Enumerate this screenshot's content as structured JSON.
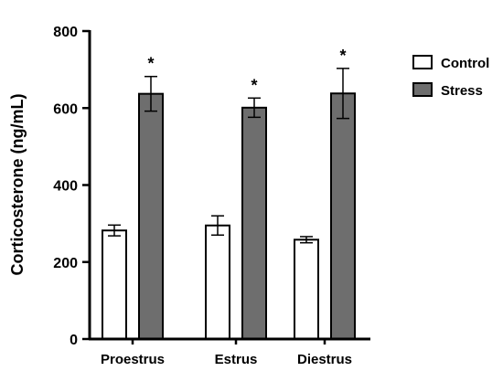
{
  "chart_data": {
    "type": "bar",
    "title": "",
    "xlabel": "",
    "ylabel": "Corticosterone (ng/mL)",
    "ylim": [
      0,
      800
    ],
    "yticks": [
      0,
      200,
      400,
      600,
      800
    ],
    "categories": [
      "Proestrus",
      "Estrus",
      "Diestrus"
    ],
    "series": [
      {
        "name": "Control",
        "color": "#ffffff",
        "values": [
          282,
          295,
          258
        ],
        "errors": [
          14,
          25,
          8
        ],
        "annotations": [
          "",
          "",
          ""
        ]
      },
      {
        "name": "Stress",
        "color": "#6e6e6e",
        "values": [
          637,
          601,
          638
        ],
        "errors": [
          45,
          25,
          65
        ],
        "annotations": [
          "*",
          "*",
          "*"
        ]
      }
    ],
    "legend_position": "top-right",
    "grid": false
  }
}
